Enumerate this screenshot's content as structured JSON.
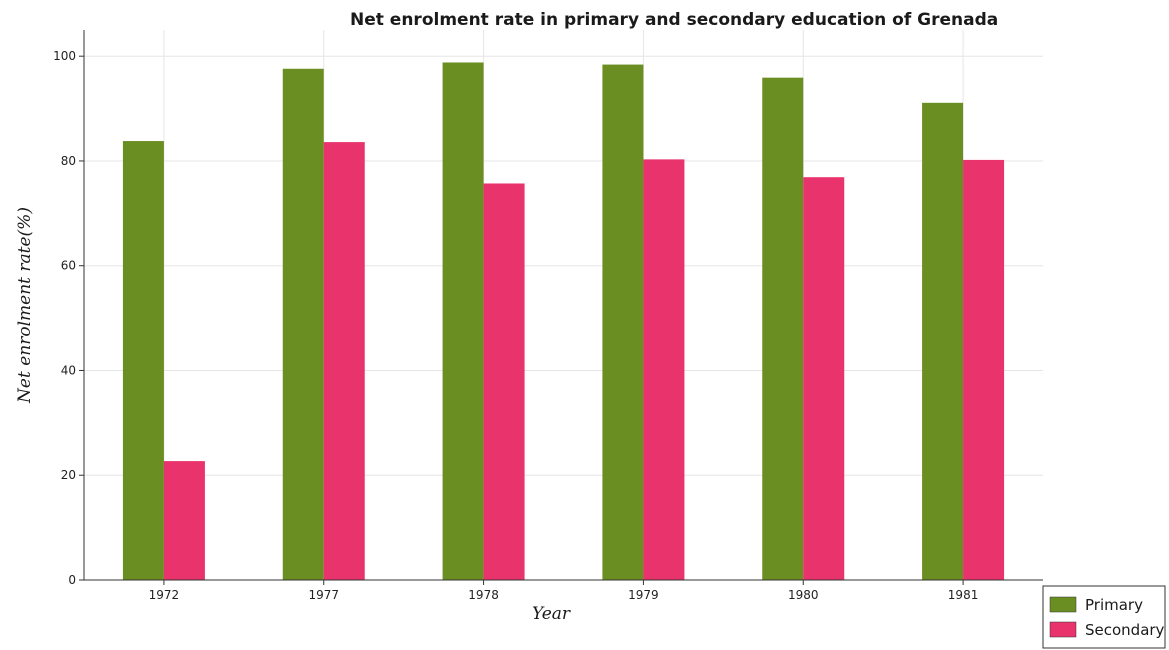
{
  "chart_data": {
    "type": "bar",
    "title": "Net enrolment rate in primary and secondary education of Grenada",
    "xlabel": "Year",
    "ylabel": "Net enrolment rate(%)",
    "categories": [
      "1972",
      "1977",
      "1978",
      "1979",
      "1980",
      "1981"
    ],
    "series": [
      {
        "name": "Primary",
        "color": "#6b8e23",
        "values": [
          83.8,
          97.6,
          98.8,
          98.4,
          95.9,
          91.1
        ]
      },
      {
        "name": "Secondary",
        "color": "#e8336d",
        "values": [
          22.7,
          83.6,
          75.7,
          80.3,
          76.9,
          80.2
        ]
      }
    ],
    "ylim": [
      0,
      105
    ],
    "yticks": [
      0,
      20,
      40,
      60,
      80,
      100
    ],
    "grid": true,
    "legend_position": "bottom-right"
  }
}
